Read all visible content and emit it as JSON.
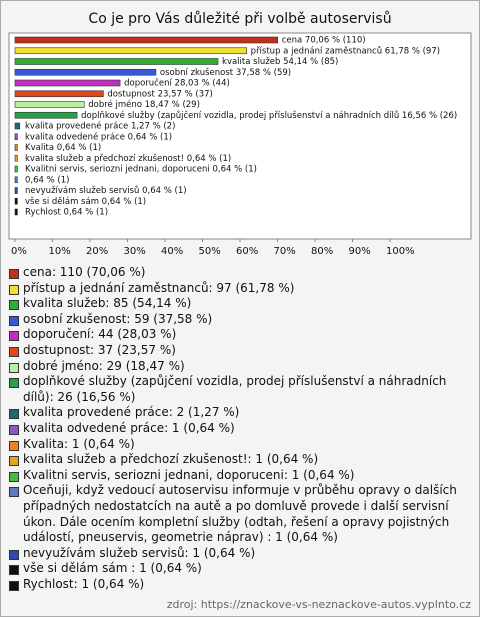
{
  "chart_data": {
    "type": "bar",
    "orientation": "horizontal",
    "title": "Co je pro Vás důležité při volbě autoservisů",
    "values": [
      70.06,
      61.78,
      54.14,
      37.58,
      28.03,
      23.57,
      18.47,
      16.56,
      1.27,
      0.64,
      0.64,
      0.64,
      0.64,
      0.64,
      0.64,
      0.64,
      0.64
    ],
    "value_labels": [
      "cena 70,06 % (110)",
      "přístup a jednání zaměstnanců 61,78 % (97)",
      "kvalita služeb 54,14 % (85)",
      "osobní zkušenost 37,58 % (59)",
      "doporučení 28,03 % (44)",
      "dostupnost 23,57 % (37)",
      "dobré jméno 18,47 % (29)",
      "doplňkové služby (zapůjčení vozidla, prodej příslušenství a náhradních dílů 16,56 % (26)",
      "kvalita provedené práce 1,27 % (2)",
      "kvalita odvedené práce 0,64 % (1)",
      "Kvalita 0,64 % (1)",
      "kvalita služeb a předchozí zkušenost! 0,64 % (1)",
      "Kvalitni servis, seriozni jednani, doporuceni 0,64 % (1)",
      "0,64 % (1)",
      "nevyužívám služeb servisů 0,64 % (1)",
      "vše si dělám sám  0,64 % (1)",
      "Rychlost 0,64 % (1)"
    ],
    "legend_labels": [
      "cena: 110 (70,06 %)",
      "přístup a jednání zaměstnanců: 97 (61,78 %)",
      "kvalita služeb: 85 (54,14 %)",
      "osobní zkušenost: 59 (37,58 %)",
      "doporučení: 44 (28,03 %)",
      "dostupnost: 37 (23,57 %)",
      "dobré jméno: 29 (18,47 %)",
      "doplňkové služby (zapůjčení vozidla, prodej příslušenství a náhradních dílů): 26 (16,56 %)",
      "kvalita provedené práce: 2 (1,27 %)",
      "kvalita odvedené práce: 1 (0,64 %)",
      "Kvalita: 1 (0,64 %)",
      "kvalita služeb a předchozí zkušenost!: 1 (0,64 %)",
      "Kvalitni servis, seriozni jednani, doporuceni: 1 (0,64 %)",
      "Oceňuji, když vedoucí autoservisu informuje v průběhu opravy o dalších případných nedostatcích na autě a po domluvě provede i další servisní úkon. Dále ocením kompletní služby (odtah, řešení a opravy pojistných událostí, pneuservis, geometrie náprav)     : 1 (0,64 %)",
      "nevyužívám služeb servisů: 1 (0,64 %)",
      "vše si dělám sám : 1 (0,64 %)",
      "Rychlost: 1 (0,64 %)"
    ],
    "colors": [
      "#c0301c",
      "#f0e030",
      "#30b030",
      "#3858d8",
      "#c030c0",
      "#e04818",
      "#b8f0a0",
      "#28a048",
      "#206878",
      "#8858c0",
      "#f08020",
      "#e0a818",
      "#40c040",
      "#6078c0",
      "#3048b0",
      "#101010",
      "#101010"
    ],
    "xlim": [
      0,
      120
    ],
    "xticks": [
      {
        "value": 0,
        "label": "0%"
      },
      {
        "value": 10,
        "label": "10%"
      },
      {
        "value": 20,
        "label": "20%"
      },
      {
        "value": 30,
        "label": "30%"
      },
      {
        "value": 40,
        "label": "40%"
      },
      {
        "value": 50,
        "label": "50%"
      },
      {
        "value": 60,
        "label": "60%"
      },
      {
        "value": 70,
        "label": "70%"
      },
      {
        "value": 80,
        "label": "80%"
      },
      {
        "value": 90,
        "label": "90%"
      },
      {
        "value": 100,
        "label": "100%"
      }
    ],
    "source": "zdroj: https://znackove-vs-neznackove-autos.vyplnto.cz"
  }
}
